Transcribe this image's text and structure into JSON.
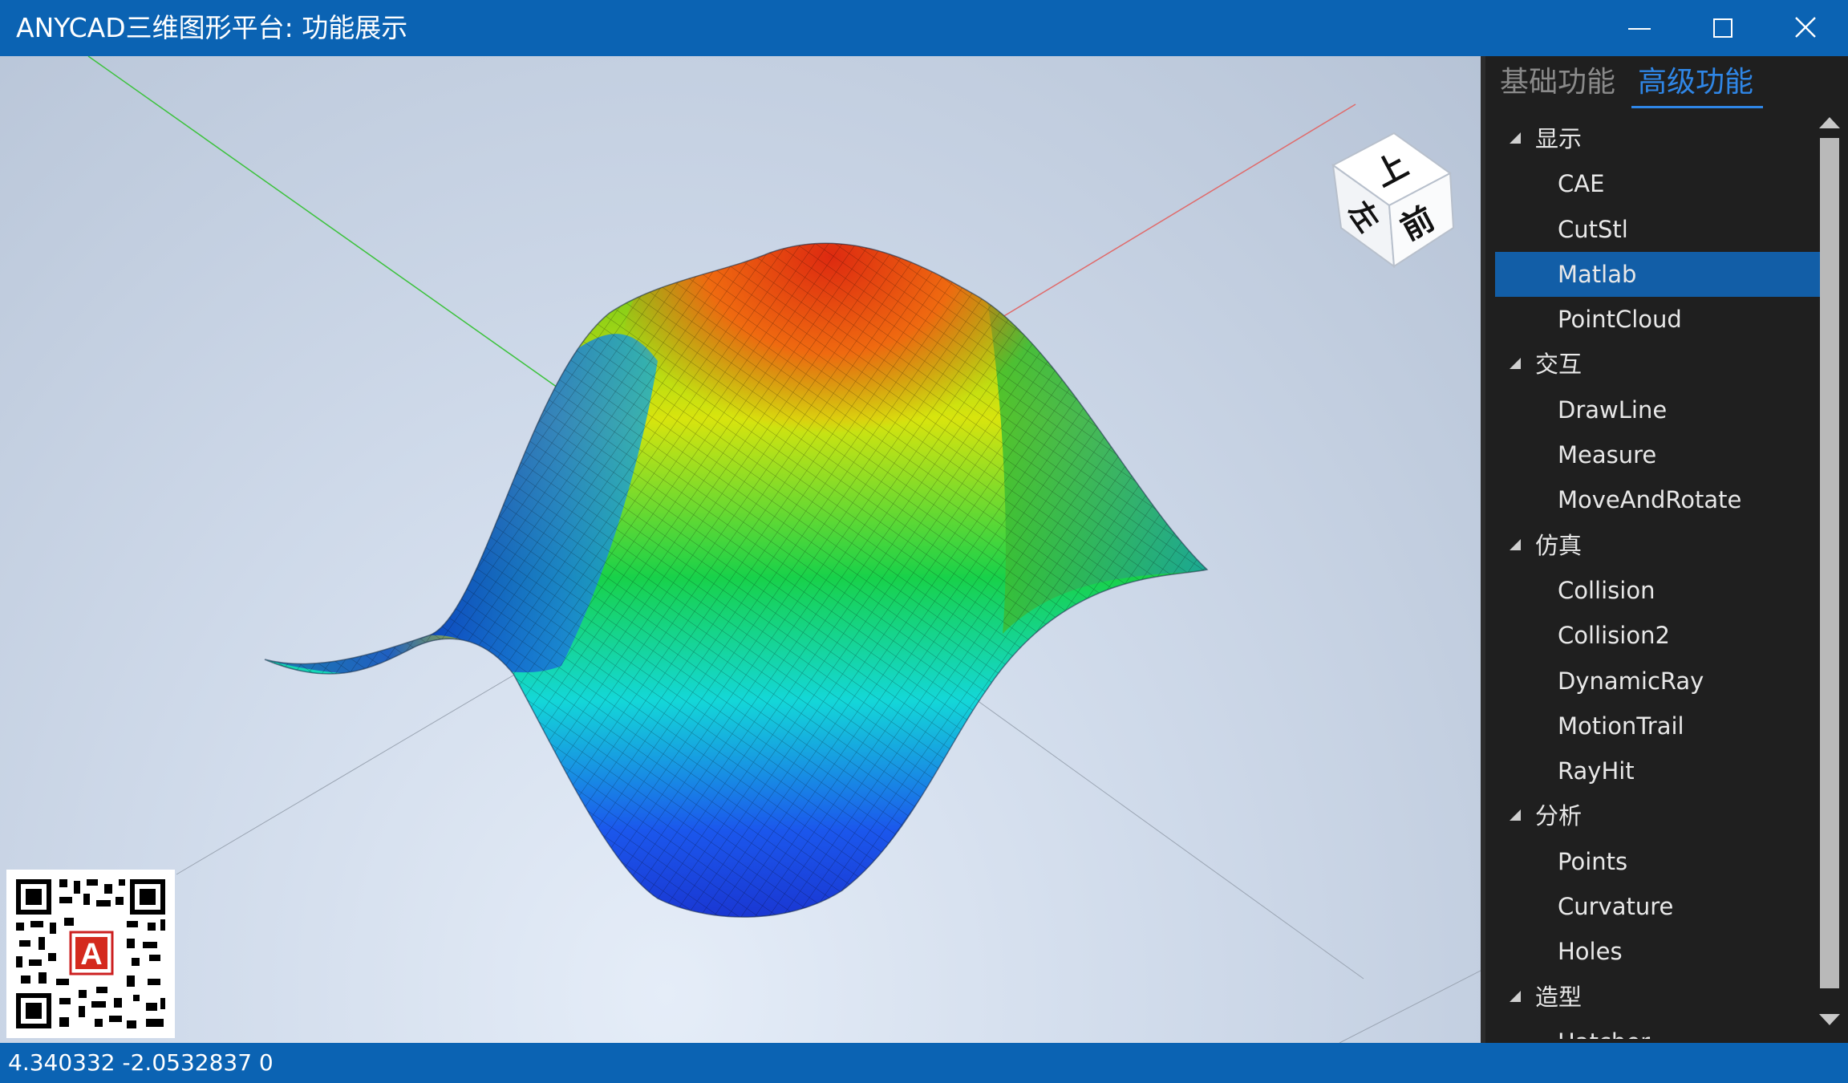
{
  "window": {
    "title": "ANYCAD三维图形平台: 功能展示"
  },
  "tabs": [
    {
      "label": "基础功能",
      "active": false
    },
    {
      "label": "高级功能",
      "active": true
    }
  ],
  "tree": [
    {
      "type": "category",
      "label": "显示"
    },
    {
      "type": "item",
      "label": "CAE"
    },
    {
      "type": "item",
      "label": "CutStl"
    },
    {
      "type": "item",
      "label": "Matlab",
      "selected": true
    },
    {
      "type": "item",
      "label": "PointCloud"
    },
    {
      "type": "category",
      "label": "交互"
    },
    {
      "type": "item",
      "label": "DrawLine"
    },
    {
      "type": "item",
      "label": "Measure"
    },
    {
      "type": "item",
      "label": "MoveAndRotate"
    },
    {
      "type": "category",
      "label": "仿真"
    },
    {
      "type": "item",
      "label": "Collision"
    },
    {
      "type": "item",
      "label": "Collision2"
    },
    {
      "type": "item",
      "label": "DynamicRay"
    },
    {
      "type": "item",
      "label": "MotionTrail"
    },
    {
      "type": "item",
      "label": "RayHit"
    },
    {
      "type": "category",
      "label": "分析"
    },
    {
      "type": "item",
      "label": "Points"
    },
    {
      "type": "item",
      "label": "Curvature"
    },
    {
      "type": "item",
      "label": "Holes"
    },
    {
      "type": "category",
      "label": "造型"
    },
    {
      "type": "item",
      "label": "Hatcher"
    }
  ],
  "viewcube": {
    "top": "上",
    "front": "前",
    "left": "左"
  },
  "qr": {
    "logo_letter": "A"
  },
  "status": {
    "coordinates": "4.340332 -2.0532837 0"
  },
  "colors": {
    "titlebar": "#0b63b3",
    "selection": "#125ea7",
    "active_tab": "#2f86e6",
    "panel": "#1f1f1f"
  }
}
